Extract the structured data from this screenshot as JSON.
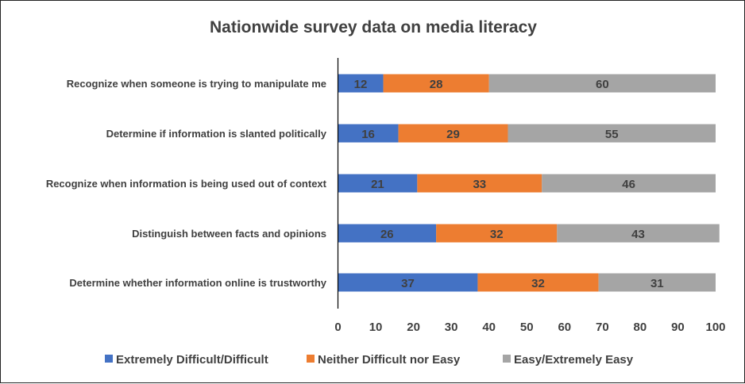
{
  "chart_data": {
    "type": "bar",
    "orientation": "horizontal",
    "stacked": true,
    "title": "Nationwide survey data on media literacy",
    "xlabel": "",
    "ylabel": "",
    "xlim": [
      0,
      100
    ],
    "xticks": [
      0,
      10,
      20,
      30,
      40,
      50,
      60,
      70,
      80,
      90,
      100
    ],
    "grid": false,
    "legend_position": "bottom",
    "categories": [
      "Recognize when someone is trying to manipulate me",
      "Determine if information is slanted politically",
      "Recognize when information is being used out of context",
      "Distinguish between facts and opinions",
      "Determine whether information online is trustworthy"
    ],
    "series": [
      {
        "name": "Extremely Difficult/Difficult",
        "color": "#4472C4",
        "values": [
          12,
          16,
          21,
          26,
          37
        ]
      },
      {
        "name": "Neither Difficult nor Easy",
        "color": "#ED7D31",
        "values": [
          28,
          29,
          33,
          32,
          32
        ]
      },
      {
        "name": "Easy/Extremely Easy",
        "color": "#A5A5A5",
        "values": [
          60,
          55,
          46,
          43,
          31
        ]
      }
    ]
  }
}
